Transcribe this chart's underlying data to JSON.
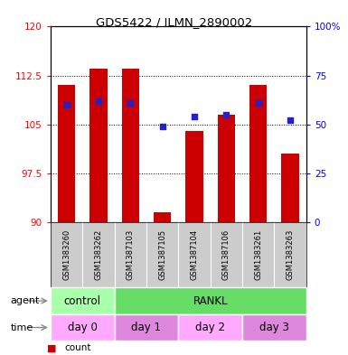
{
  "title": "GDS5422 / ILMN_2890002",
  "samples": [
    "GSM1383260",
    "GSM1383262",
    "GSM1387103",
    "GSM1387105",
    "GSM1387104",
    "GSM1387106",
    "GSM1383261",
    "GSM1383263"
  ],
  "count_values": [
    111.0,
    113.5,
    113.5,
    91.5,
    104.0,
    106.5,
    111.0,
    100.5
  ],
  "percentile_values": [
    60,
    62,
    61,
    49,
    54,
    55,
    61,
    52
  ],
  "ylim_left": [
    90,
    120
  ],
  "ylim_right": [
    0,
    100
  ],
  "yticks_left": [
    90,
    97.5,
    105,
    112.5,
    120
  ],
  "yticks_right": [
    0,
    25,
    50,
    75,
    100
  ],
  "ytick_labels_left": [
    "90",
    "97.5",
    "105",
    "112.5",
    "120"
  ],
  "ytick_labels_right": [
    "0",
    "25",
    "50",
    "75",
    "100%"
  ],
  "bar_color": "#cc0000",
  "dot_color": "#2222cc",
  "bar_bottom": 90,
  "agent_groups": [
    {
      "label": "control",
      "span": [
        0,
        2
      ],
      "color": "#aaffaa"
    },
    {
      "label": "RANKL",
      "span": [
        2,
        8
      ],
      "color": "#66dd66"
    }
  ],
  "time_groups": [
    {
      "label": "day 0",
      "span": [
        0,
        2
      ],
      "color": "#ffaaff"
    },
    {
      "label": "day 1",
      "span": [
        2,
        4
      ],
      "color": "#dd88dd"
    },
    {
      "label": "day 2",
      "span": [
        4,
        6
      ],
      "color": "#ffaaff"
    },
    {
      "label": "day 3",
      "span": [
        6,
        8
      ],
      "color": "#dd88dd"
    }
  ],
  "agent_label": "agent",
  "time_label": "time",
  "legend_count_color": "#cc0000",
  "legend_dot_color": "#2222cc"
}
